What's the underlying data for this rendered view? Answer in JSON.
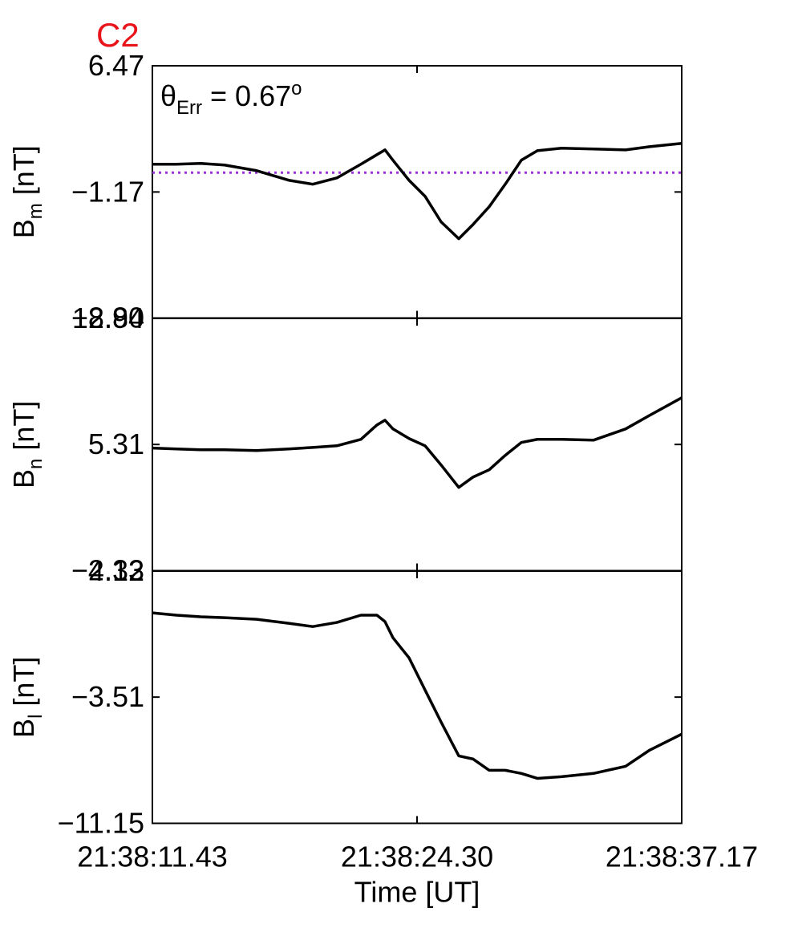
{
  "chart_data": [
    {
      "type": "line",
      "title": "C2",
      "annotation": {
        "symbol": "θ",
        "subscript": "Err",
        "text": " =  0.67",
        "superscript": "o"
      },
      "ylabel": {
        "base": "B",
        "subscript": "m",
        "unit": " [nT]"
      },
      "x": [
        11.43,
        12.6,
        13.77,
        14.94,
        16.5,
        18.06,
        19.23,
        20.4,
        21.57,
        22.35,
        22.74,
        23.13,
        23.91,
        24.69,
        25.47,
        26.33,
        27.03,
        27.81,
        28.59,
        29.37,
        30.15,
        31.32,
        32.88,
        34.44,
        35.61,
        37.17
      ],
      "values": [
        0.51,
        0.51,
        0.56,
        0.46,
        0.12,
        -0.46,
        -0.7,
        -0.32,
        0.51,
        1.09,
        1.38,
        0.75,
        -0.46,
        -1.43,
        -2.98,
        -4.0,
        -3.13,
        -2.06,
        -0.7,
        0.75,
        1.33,
        1.48,
        1.43,
        1.38,
        1.57,
        1.77
      ],
      "color": "#000000",
      "hline": 0,
      "hline_color": "#9b30d9",
      "xlim": [
        11.43,
        37.17
      ],
      "xticks": [
        11.43,
        24.3,
        37.17
      ],
      "ylim": [
        -8.8,
        6.47
      ],
      "yticks": [
        {
          "value": -8.8,
          "label": "−8.80"
        },
        {
          "value": -1.17,
          "label": "−1.17"
        },
        6.47
      ]
    },
    {
      "type": "line",
      "ylabel": {
        "base": "B",
        "subscript": "n",
        "unit": " [nT]"
      },
      "x": [
        11.43,
        12.6,
        13.77,
        14.94,
        16.5,
        18.06,
        19.23,
        20.4,
        21.57,
        22.35,
        22.74,
        23.13,
        23.91,
        24.69,
        25.47,
        26.33,
        27.03,
        27.81,
        28.59,
        29.37,
        30.15,
        31.32,
        32.88,
        34.44,
        35.61,
        37.17
      ],
      "values": [
        5.09,
        5.04,
        4.99,
        4.99,
        4.94,
        5.04,
        5.13,
        5.23,
        5.62,
        6.49,
        6.78,
        6.25,
        5.67,
        5.23,
        4.07,
        2.71,
        3.34,
        3.78,
        4.65,
        5.43,
        5.62,
        5.62,
        5.57,
        6.25,
        7.07,
        8.14
      ],
      "color": "#000000",
      "xlim": [
        11.43,
        37.17
      ],
      "xticks": [
        11.43,
        24.3,
        37.17
      ],
      "ylim": [
        -2.33,
        12.94
      ],
      "yticks": [
        {
          "value": -2.33,
          "label": "−2.33"
        },
        5.31,
        12.94
      ]
    },
    {
      "type": "line",
      "ylabel": {
        "base": "B",
        "subscript": "l",
        "unit": " [nT]"
      },
      "x": [
        11.43,
        12.6,
        13.77,
        14.94,
        16.5,
        18.06,
        19.23,
        20.4,
        21.57,
        22.35,
        22.74,
        23.13,
        23.91,
        24.69,
        25.47,
        26.33,
        27.03,
        27.81,
        28.59,
        29.37,
        30.15,
        31.32,
        32.88,
        34.44,
        35.61,
        37.17
      ],
      "values": [
        1.59,
        1.45,
        1.35,
        1.3,
        1.2,
        0.96,
        0.76,
        1.01,
        1.45,
        1.45,
        1.06,
        0.08,
        -1.13,
        -3.08,
        -5.02,
        -7.07,
        -7.26,
        -7.94,
        -7.94,
        -8.13,
        -8.43,
        -8.33,
        -8.13,
        -7.7,
        -6.72,
        -5.75
      ],
      "color": "#000000",
      "xlabel": "Time [UT]",
      "xlim": [
        11.43,
        37.17
      ],
      "xticks": [
        {
          "value": 11.43,
          "label": "21:38:11.43"
        },
        {
          "value": 24.3,
          "label": "21:38:24.30"
        },
        {
          "value": 37.17,
          "label": "21:38:37.17"
        }
      ],
      "ylim": [
        -11.15,
        4.12
      ],
      "yticks": [
        {
          "value": -11.15,
          "label": "−11.15"
        },
        {
          "value": -3.51,
          "label": "−3.51"
        },
        4.12
      ]
    }
  ]
}
